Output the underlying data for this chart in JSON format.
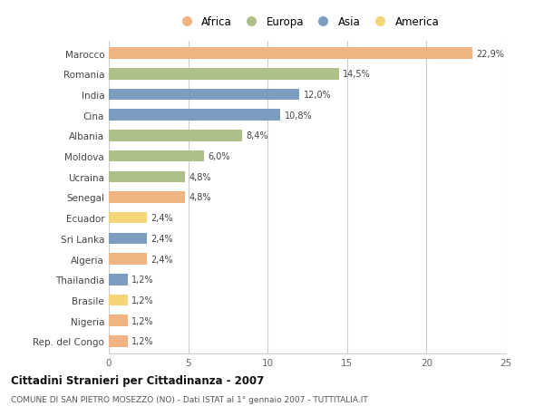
{
  "countries": [
    "Marocco",
    "Romania",
    "India",
    "Cina",
    "Albania",
    "Moldova",
    "Ucraina",
    "Senegal",
    "Ecuador",
    "Sri Lanka",
    "Algeria",
    "Thailandia",
    "Brasile",
    "Nigeria",
    "Rep. del Congo"
  ],
  "values": [
    22.9,
    14.5,
    12.0,
    10.8,
    8.4,
    6.0,
    4.8,
    4.8,
    2.4,
    2.4,
    2.4,
    1.2,
    1.2,
    1.2,
    1.2
  ],
  "labels": [
    "22,9%",
    "14,5%",
    "12,0%",
    "10,8%",
    "8,4%",
    "6,0%",
    "4,8%",
    "4,8%",
    "2,4%",
    "2,4%",
    "2,4%",
    "1,2%",
    "1,2%",
    "1,2%",
    "1,2%"
  ],
  "continents": [
    "Africa",
    "Europa",
    "Asia",
    "Asia",
    "Europa",
    "Europa",
    "Europa",
    "Africa",
    "America",
    "Asia",
    "Africa",
    "Asia",
    "America",
    "Africa",
    "Africa"
  ],
  "continent_colors": {
    "Africa": "#F0B482",
    "Europa": "#AEBF8A",
    "Asia": "#7B9EC0",
    "America": "#F5D57A"
  },
  "legend_order": [
    "Africa",
    "Europa",
    "Asia",
    "America"
  ],
  "xlim": [
    0,
    25
  ],
  "xticks": [
    0,
    5,
    10,
    15,
    20,
    25
  ],
  "title": "Cittadini Stranieri per Cittadinanza - 2007",
  "subtitle": "COMUNE DI SAN PIETRO MOSEZZO (NO) - Dati ISTAT al 1° gennaio 2007 - TUTTITALIA.IT",
  "bg_color": "#FFFFFF",
  "grid_color": "#CCCCCC",
  "bar_height": 0.55
}
